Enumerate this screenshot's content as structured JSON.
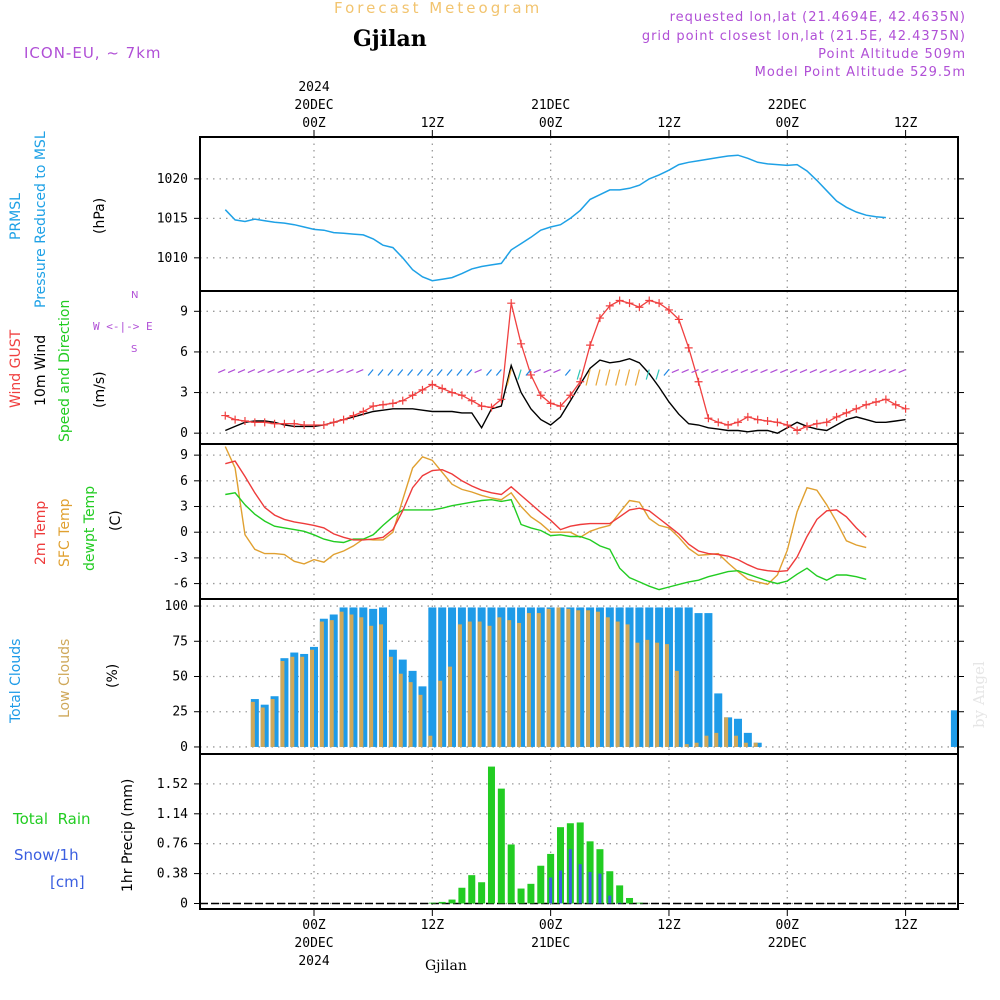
{
  "header": {
    "title": "Forecast Meteogram",
    "city": "Gjilan",
    "model": "ICON-EU, ~ 7km",
    "requested": "requested lon,lat (21.4694E, 42.4635N)",
    "gridpoint": "grid point closest lon,lat (21.5E, 42.4375N)",
    "point_alt": "Point Altitude 509m",
    "model_alt": "Model Point Altitude 529.5m",
    "credit": "by Angel",
    "footer_city": "Gjilan"
  },
  "time_axis": {
    "ticks": [
      {
        "hour": 0,
        "line1": "2024",
        "line2": "20DEC",
        "line3": "00Z"
      },
      {
        "hour": 12,
        "line1": "",
        "line2": "",
        "line3": "12Z"
      },
      {
        "hour": 24,
        "line1": "",
        "line2": "21DEC",
        "line3": "00Z"
      },
      {
        "hour": 36,
        "line1": "",
        "line2": "",
        "line3": "12Z"
      },
      {
        "hour": 48,
        "line1": "",
        "line2": "22DEC",
        "line3": "00Z"
      },
      {
        "hour": 60,
        "line1": "",
        "line2": "",
        "line3": "12Z"
      }
    ],
    "bottom_ticks": [
      {
        "hour": 0,
        "line1": "00Z",
        "line2": "20DEC",
        "line3": "2024"
      },
      {
        "hour": 12,
        "line1": "12Z",
        "line2": "",
        "line3": ""
      },
      {
        "hour": 24,
        "line1": "00Z",
        "line2": "21DEC",
        "line3": ""
      },
      {
        "hour": 36,
        "line1": "12Z",
        "line2": "",
        "line3": ""
      },
      {
        "hour": 48,
        "line1": "00Z",
        "line2": "22DEC",
        "line3": ""
      },
      {
        "hour": 60,
        "line1": "12Z",
        "line2": "",
        "line3": ""
      }
    ]
  },
  "panel_labels": {
    "pressure": {
      "l1": "PRMSL",
      "l2": "Pressure Reduced to MSL",
      "unit": "(hPa)"
    },
    "wind": {
      "gust": "Wind GUST",
      "wind10": "10m Wind",
      "speeddir": "Speed and Direction",
      "unit": "(m/s)",
      "compass_n": "N",
      "compass_s": "S",
      "compass_we": "W <-|-> E"
    },
    "temp": {
      "t2m": "2m Temp",
      "sfc": "SFC Temp",
      "dewpt": "dewpt Temp",
      "unit": "(C)"
    },
    "clouds": {
      "total": "Total Clouds",
      "low": "Low Clouds",
      "unit": "(%)"
    },
    "precip": {
      "rain": "Total  Rain",
      "snow": "Snow/1h",
      "cm": "[cm]",
      "ylabel": "1hr Precip (mm)"
    }
  },
  "colors": {
    "pressure": "#1ea1e6",
    "gust": "#f04040",
    "wind10": "#000000",
    "t2m": "#ee3b3b",
    "sfc": "#e0a030",
    "dewpt": "#22cc22",
    "total_cloud": "#1e9be8",
    "low_cloud": "#cfa85a",
    "rain": "#22cc22",
    "snow": "#3a5ee0",
    "purple": "#b04fd6"
  },
  "chart_data": [
    {
      "type": "line",
      "title": "PRMSL Pressure Reduced to MSL",
      "ylabel": "hPa",
      "x_start_hour": -9,
      "x_step_hours": 1,
      "ylim": [
        1005.8,
        1025.3
      ],
      "yticks": [
        1010,
        1015,
        1020
      ],
      "series": [
        {
          "name": "PRMSL",
          "values": [
            1016.1,
            1014.8,
            1014.6,
            1014.9,
            1014.7,
            1014.5,
            1014.4,
            1014.2,
            1013.9,
            1013.6,
            1013.5,
            1013.2,
            1013.1,
            1013.0,
            1012.9,
            1012.4,
            1011.6,
            1011.3,
            1010.0,
            1008.5,
            1007.6,
            1007.1,
            1007.3,
            1007.5,
            1008.0,
            1008.6,
            1008.9,
            1009.1,
            1009.3,
            1011.0,
            1011.8,
            1012.6,
            1013.5,
            1013.9,
            1014.2,
            1015.0,
            1016.0,
            1017.4,
            1018.0,
            1018.6,
            1018.6,
            1018.8,
            1019.2,
            1020.0,
            1020.5,
            1021.1,
            1021.8,
            1022.1,
            1022.3,
            1022.5,
            1022.7,
            1022.9,
            1023.0,
            1022.6,
            1022.1,
            1021.9,
            1021.8,
            1021.7,
            1021.8,
            1021.0,
            1019.8,
            1018.5,
            1017.2,
            1016.4,
            1015.8,
            1015.4,
            1015.2,
            1015.1
          ]
        }
      ]
    },
    {
      "type": "line",
      "title": "Wind GUST / 10m Wind Speed and Direction",
      "ylabel": "m/s",
      "x_start_hour": -9,
      "x_step_hours": 1,
      "ylim": [
        -0.8,
        10.5
      ],
      "yticks": [
        0,
        3,
        6,
        9
      ],
      "series": [
        {
          "name": "Wind GUST",
          "values": [
            1.3,
            1.0,
            0.9,
            0.8,
            0.8,
            0.7,
            0.7,
            0.7,
            0.6,
            0.6,
            0.6,
            0.8,
            1.0,
            1.3,
            1.6,
            2.0,
            2.1,
            2.2,
            2.4,
            2.8,
            3.2,
            3.6,
            3.3,
            3.0,
            2.8,
            2.4,
            2.0,
            1.9,
            2.5,
            9.6,
            6.6,
            4.3,
            2.8,
            2.2,
            2.0,
            2.8,
            3.8,
            6.5,
            8.5,
            9.4,
            9.8,
            9.6,
            9.3,
            9.8,
            9.6,
            9.1,
            8.4,
            6.3,
            3.8,
            1.1,
            0.8,
            0.6,
            0.8,
            1.2,
            1.0,
            0.9,
            0.8,
            0.6,
            0.2,
            0.5,
            0.7,
            0.8,
            1.2,
            1.5,
            1.8,
            2.1,
            2.3,
            2.5,
            2.1,
            1.8
          ]
        },
        {
          "name": "10m Wind",
          "values": [
            0.2,
            0.5,
            0.8,
            0.9,
            0.9,
            0.8,
            0.6,
            0.5,
            0.5,
            0.5,
            0.6,
            0.8,
            1.0,
            1.2,
            1.4,
            1.6,
            1.7,
            1.8,
            1.8,
            1.8,
            1.7,
            1.6,
            1.6,
            1.6,
            1.5,
            1.5,
            0.4,
            1.8,
            2.0,
            5.0,
            3.0,
            1.8,
            1.0,
            0.6,
            1.2,
            2.4,
            3.6,
            4.8,
            5.4,
            5.2,
            5.3,
            5.5,
            5.2,
            4.4,
            3.4,
            2.3,
            1.4,
            0.7,
            0.6,
            0.4,
            0.3,
            0.2,
            0.2,
            0.1,
            0.2,
            0.2,
            0.0,
            0.4,
            0.8,
            0.5,
            0.3,
            0.2,
            0.6,
            1.0,
            1.2,
            1.0,
            0.8,
            0.8,
            0.9,
            1.0
          ]
        }
      ],
      "direction_row_value": 4.7
    },
    {
      "type": "line",
      "title": "2m Temp / SFC Temp / dewpt Temp",
      "ylabel": "C",
      "x_start_hour": -9,
      "x_step_hours": 1,
      "ylim": [
        -7.8,
        10.3
      ],
      "yticks": [
        -6,
        -3,
        0,
        3,
        6,
        9
      ],
      "series": [
        {
          "name": "2m Temp",
          "values": [
            8.0,
            8.3,
            6.5,
            4.6,
            2.9,
            2.0,
            1.5,
            1.2,
            1.0,
            0.8,
            0.5,
            -0.2,
            -0.6,
            -0.9,
            -0.9,
            -0.8,
            -0.6,
            0.3,
            2.5,
            5.2,
            6.6,
            7.2,
            7.3,
            6.8,
            6.0,
            5.4,
            4.9,
            4.6,
            4.4,
            5.3,
            4.3,
            3.3,
            2.3,
            1.4,
            0.3,
            0.7,
            0.9,
            1.0,
            1.0,
            1.0,
            1.8,
            2.6,
            2.8,
            2.5,
            1.6,
            0.7,
            -0.2,
            -1.4,
            -2.2,
            -2.5,
            -2.6,
            -2.8,
            -3.2,
            -3.8,
            -4.3,
            -4.5,
            -4.6,
            -4.5,
            -2.9,
            -0.5,
            1.5,
            2.5,
            2.6,
            1.8,
            0.5,
            -0.6
          ]
        },
        {
          "name": "SFC Temp",
          "values": [
            10.0,
            7.5,
            -0.3,
            -2.0,
            -2.5,
            -2.5,
            -2.6,
            -3.4,
            -3.7,
            -3.2,
            -3.5,
            -2.6,
            -2.2,
            -1.6,
            -0.8,
            -0.9,
            -0.9,
            0.0,
            3.8,
            7.5,
            8.8,
            8.4,
            7.0,
            5.6,
            5.0,
            4.7,
            4.3,
            4.0,
            3.8,
            4.6,
            3.0,
            1.8,
            1.0,
            0.0,
            0.0,
            0.0,
            -0.6,
            0.1,
            0.5,
            0.8,
            2.3,
            3.7,
            3.5,
            1.6,
            0.8,
            0.5,
            -0.6,
            -1.9,
            -2.7,
            -2.6,
            -2.5,
            -3.6,
            -4.6,
            -5.5,
            -5.8,
            -6.1,
            -5.0,
            -2.1,
            2.4,
            5.2,
            4.9,
            3.2,
            1.2,
            -1.0,
            -1.5,
            -1.8
          ]
        },
        {
          "name": "dewpt Temp",
          "values": [
            4.4,
            4.6,
            3.2,
            2.1,
            1.3,
            0.7,
            0.5,
            0.3,
            0.1,
            -0.3,
            -0.8,
            -1.1,
            -1.2,
            -0.8,
            -0.8,
            -0.3,
            0.8,
            1.8,
            2.6,
            2.6,
            2.6,
            2.6,
            2.8,
            3.1,
            3.3,
            3.5,
            3.7,
            3.8,
            3.6,
            3.8,
            0.9,
            0.5,
            0.2,
            -0.4,
            -0.3,
            -0.5,
            -0.5,
            -0.9,
            -1.6,
            -2.0,
            -4.2,
            -5.3,
            -5.8,
            -6.3,
            -6.7,
            -6.4,
            -6.1,
            -5.8,
            -5.6,
            -5.2,
            -4.9,
            -4.6,
            -4.5,
            -4.9,
            -5.3,
            -5.7,
            -6.0,
            -5.7,
            -4.9,
            -4.2,
            -5.1,
            -5.6,
            -5.0,
            -5.0,
            -5.2,
            -5.5
          ]
        }
      ]
    },
    {
      "type": "bar",
      "title": "Total Clouds / Low Clouds",
      "ylabel": "%",
      "x_start_hour": -9,
      "x_step_hours": 1,
      "ylim": [
        -5,
        105
      ],
      "yticks": [
        0,
        25,
        50,
        75,
        100
      ],
      "series": [
        {
          "name": "Total Clouds",
          "values": [
            0,
            0,
            0,
            34,
            30,
            36,
            63,
            67,
            66,
            71,
            91,
            94,
            99,
            99,
            99,
            98,
            99,
            69,
            62,
            54,
            43,
            99,
            99,
            99,
            99,
            99,
            99,
            99,
            99,
            99,
            99,
            99,
            99,
            99,
            99,
            99,
            99,
            99,
            99,
            99,
            99,
            99,
            99,
            99,
            99,
            99,
            99,
            99,
            95,
            95,
            38,
            21,
            20,
            10,
            3,
            0,
            0,
            0,
            0,
            0,
            0,
            0,
            0,
            0,
            0,
            0,
            0,
            0,
            0,
            0,
            0,
            0,
            0,
            0,
            26
          ]
        },
        {
          "name": "Low Clouds",
          "values": [
            0,
            0,
            0,
            32,
            28,
            34,
            61,
            64,
            64,
            69,
            89,
            90,
            96,
            94,
            92,
            86,
            87,
            64,
            52,
            46,
            37,
            8,
            47,
            57,
            87,
            89,
            89,
            86,
            92,
            90,
            88,
            95,
            95,
            98,
            99,
            98,
            97,
            97,
            96,
            92,
            89,
            87,
            74,
            76,
            74,
            73,
            54,
            2,
            3,
            8,
            10,
            21,
            8,
            3,
            3,
            0,
            0,
            0,
            0,
            0,
            0,
            0,
            0,
            0,
            0,
            0,
            0,
            0,
            0,
            0,
            0,
            0,
            0,
            0,
            0
          ]
        }
      ]
    },
    {
      "type": "bar",
      "title": "1hr Precip (mm)",
      "ylabel": "1hr Precip (mm)",
      "x_start_hour": -9,
      "x_step_hours": 1,
      "ylim": [
        -0.07,
        1.9
      ],
      "yticks": [
        0,
        0.38,
        0.76,
        1.14,
        1.52
      ],
      "series": [
        {
          "name": "Total Rain",
          "values": [
            0,
            0,
            0,
            0,
            0,
            0,
            0,
            0,
            0,
            0,
            0,
            0,
            0,
            0,
            0,
            0,
            0,
            0,
            0,
            0,
            0,
            0.01,
            0.02,
            0.05,
            0.2,
            0.36,
            0.27,
            1.74,
            1.46,
            0.75,
            0.19,
            0.25,
            0.48,
            0.63,
            0.97,
            1.02,
            1.03,
            0.79,
            0.69,
            0.41,
            0.23,
            0.07,
            0.01
          ]
        },
        {
          "name": "Snow/1h",
          "values": [
            0,
            0,
            0,
            0,
            0,
            0,
            0,
            0,
            0,
            0,
            0,
            0,
            0,
            0,
            0,
            0,
            0,
            0,
            0,
            0,
            0,
            0,
            0,
            0,
            0,
            0,
            0,
            0,
            0,
            0,
            0,
            0,
            0,
            0.33,
            0.42,
            0.69,
            0.5,
            0.4,
            0.38,
            0.1,
            0.01,
            0,
            0
          ]
        }
      ]
    }
  ]
}
